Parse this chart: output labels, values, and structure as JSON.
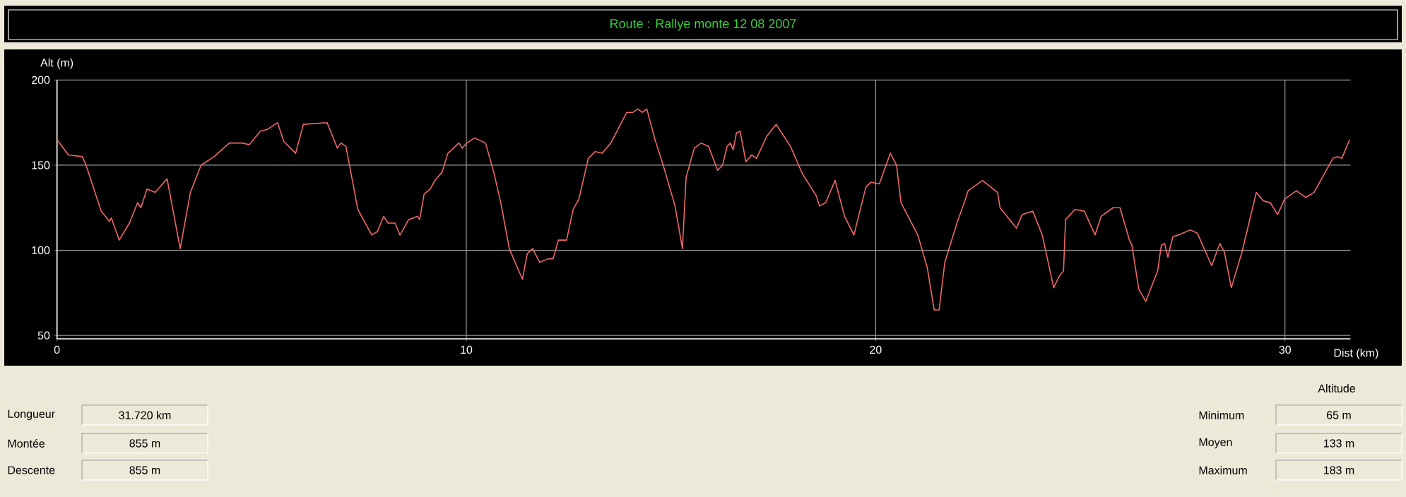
{
  "chart_data": {
    "type": "line",
    "title": "Route : Rallye monte 12 08 2007",
    "xlabel": "Dist (km)",
    "ylabel": "Alt (m)",
    "color": "#f06868",
    "x": [
      0,
      0.28,
      0.62,
      0.71,
      1.08,
      1.28,
      1.33,
      1.52,
      1.77,
      1.97,
      2.05,
      2.2,
      2.4,
      2.69,
      3.01,
      3.26,
      3.52,
      3.84,
      4.21,
      4.53,
      4.7,
      4.97,
      5.14,
      5.39,
      5.54,
      5.83,
      6.02,
      6.6,
      6.85,
      6.94,
      7.06,
      7.35,
      7.69,
      7.83,
      7.98,
      8.09,
      8.26,
      8.38,
      8.59,
      8.81,
      8.86,
      8.97,
      9.12,
      9.23,
      9.41,
      9.55,
      9.82,
      9.9,
      10.01,
      10.2,
      10.47,
      10.68,
      10.85,
      11.05,
      11.37,
      11.49,
      11.62,
      11.79,
      12,
      12.12,
      12.25,
      12.45,
      12.61,
      12.75,
      12.98,
      13.15,
      13.32,
      13.53,
      13.92,
      14.07,
      14.19,
      14.3,
      14.41,
      14.61,
      14.81,
      15.1,
      15.28,
      15.37,
      15.57,
      15.74,
      15.92,
      16.14,
      16.26,
      16.37,
      16.45,
      16.52,
      16.6,
      16.69,
      16.83,
      16.97,
      17.09,
      17.34,
      17.57,
      17.92,
      18.21,
      18.55,
      18.63,
      18.78,
      19.01,
      19.24,
      19.47,
      19.76,
      19.88,
      20.09,
      20.36,
      20.51,
      20.62,
      21.03,
      21.26,
      21.43,
      21.55,
      21.69,
      22,
      22.15,
      22.26,
      22.61,
      22.98,
      23.04,
      23.44,
      23.58,
      23.84,
      24.07,
      24.35,
      24.49,
      24.59,
      24.64,
      24.87,
      25.1,
      25.36,
      25.51,
      25.8,
      25.97,
      26.2,
      26.26,
      26.43,
      26.6,
      26.89,
      26.98,
      27.06,
      27.14,
      27.26,
      27.4,
      27.69,
      27.86,
      28.21,
      28.41,
      28.52,
      28.69,
      28.95,
      29.13,
      29.3,
      29.47,
      29.64,
      29.82,
      29.99,
      30.28,
      30.51,
      30.71,
      31.17,
      31.28,
      31.39,
      31.58
    ],
    "values": [
      165,
      156,
      155,
      150,
      123,
      117,
      119,
      106,
      116,
      128,
      125,
      136,
      134,
      142,
      101,
      134,
      150,
      155,
      163,
      163,
      162,
      170,
      171,
      175,
      164,
      157,
      174,
      175,
      160,
      163,
      161,
      124,
      109,
      111,
      120,
      116,
      116,
      109,
      118,
      120,
      118,
      133,
      136,
      141,
      146,
      157,
      163,
      160,
      163,
      166,
      163,
      145,
      127,
      101,
      83,
      98,
      101,
      93,
      95,
      95,
      106,
      106,
      124,
      130,
      154,
      158,
      157,
      163,
      181,
      181,
      183,
      181,
      183,
      165,
      150,
      126,
      101,
      143,
      160,
      163,
      161,
      147,
      150,
      161,
      163,
      159,
      169,
      170,
      152,
      156,
      154,
      167,
      174,
      161,
      145,
      132,
      126,
      128,
      141,
      120,
      109,
      137,
      140,
      139,
      157,
      150,
      128,
      109,
      90,
      65,
      65,
      93,
      117,
      127,
      135,
      141,
      134,
      125,
      113,
      121,
      123,
      109,
      78,
      85,
      88,
      118,
      124,
      123,
      109,
      120,
      125,
      125,
      106,
      103,
      77,
      70,
      88,
      103,
      104,
      96,
      108,
      109,
      112,
      110,
      91,
      104,
      99,
      78,
      99,
      117,
      134,
      129,
      128,
      121,
      130,
      135,
      131,
      134,
      154,
      155,
      154,
      165
    ],
    "xlim": [
      0,
      31.6
    ],
    "ylim": [
      48,
      200
    ],
    "xticks": [
      0,
      10,
      20,
      30
    ],
    "yticks": [
      50,
      100,
      150,
      200
    ],
    "grid": true,
    "annotations": [
      "Longueur",
      "31.720 km",
      "Montée",
      "855 m",
      "Descente",
      "855 m",
      "Altitude",
      "Minimum",
      "65 m",
      "Moyen",
      "133 m",
      "Maximum",
      "183 m"
    ]
  }
}
